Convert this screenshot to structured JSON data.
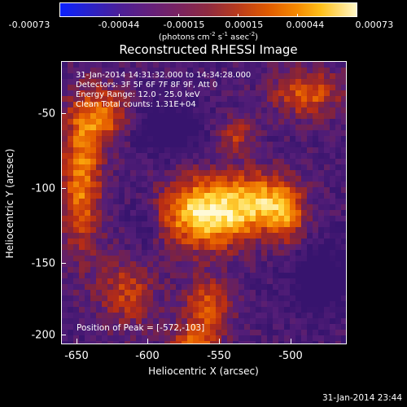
{
  "colorbar": {
    "labels": [
      "-0.00073",
      "-0.00044",
      "-0.00015",
      "0.00015",
      "0.00044",
      "0.00073"
    ],
    "unit_prefix": "(photons cm",
    "unit_exp1": "-2",
    "unit_mid": " s",
    "unit_exp2": "-1",
    "unit_mid2": " asec",
    "unit_exp3": "-2",
    "unit_suffix": ")"
  },
  "title": "Reconstructed RHESSI Image",
  "info": {
    "line1": "31-Jan-2014 14:31:32.000 to 14:34:28.000",
    "line2": "Detectors: 3F 5F 6F 7F 8F 9F, Att 0",
    "line3": "Energy Range: 12.0 - 25.0 keV",
    "line4": "Clean    Total counts: 1.31E+04"
  },
  "peak": "Position of Peak = [-572,-103]",
  "axes": {
    "xlabel": "Heliocentric X (arcsec)",
    "ylabel": "Heliocentric Y (arcsec)",
    "xticks": [
      "-650",
      "-600",
      "-550",
      "-500"
    ],
    "yticks": [
      "-50",
      "-100",
      "-150",
      "-200"
    ]
  },
  "timestamp": "31-Jan-2014 23:44",
  "colors": {
    "background": "#000000",
    "low": "#4b1f98",
    "mid": "#b93b1c",
    "high": "#fff8c8"
  }
}
